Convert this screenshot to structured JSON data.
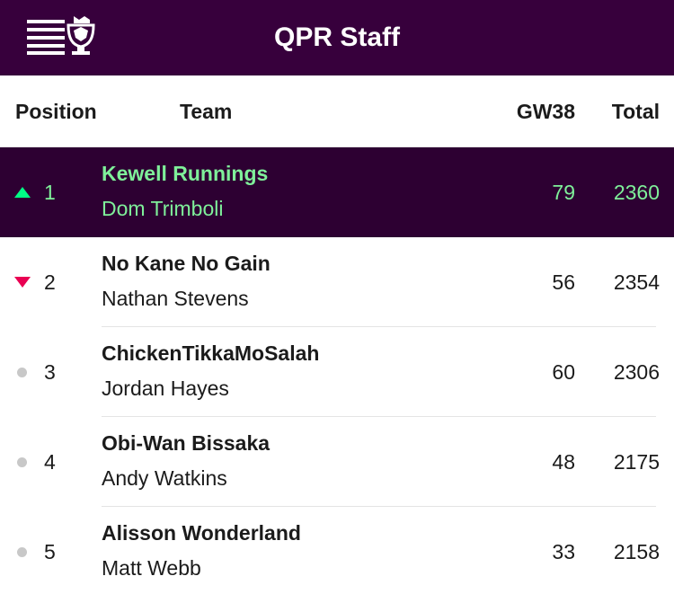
{
  "header": {
    "title": "QPR Staff",
    "logo_icon": "premier-league-lion-crown-icon",
    "background": "#37003c"
  },
  "columns": {
    "position": "Position",
    "team": "Team",
    "gameweek": "GW38",
    "total": "Total"
  },
  "colors": {
    "active_row": "#2d0032",
    "active_text": "#7ff09a",
    "up": "#00ff85",
    "down": "#e90052",
    "same": "#c8c8c8"
  },
  "standings": [
    {
      "rank": "1",
      "movement": "up",
      "team": "Kewell Runnings",
      "manager": "Dom Trimboli",
      "gw": "79",
      "total": "2360",
      "highlight": true
    },
    {
      "rank": "2",
      "movement": "down",
      "team": "No Kane No Gain",
      "manager": "Nathan Stevens",
      "gw": "56",
      "total": "2354",
      "highlight": false
    },
    {
      "rank": "3",
      "movement": "same",
      "team": "ChickenTikkaMoSalah",
      "manager": "Jordan Hayes",
      "gw": "60",
      "total": "2306",
      "highlight": false
    },
    {
      "rank": "4",
      "movement": "same",
      "team": "Obi-Wan Bissaka",
      "manager": "Andy Watkins",
      "gw": "48",
      "total": "2175",
      "highlight": false
    },
    {
      "rank": "5",
      "movement": "same",
      "team": "Alisson Wonderland",
      "manager": "Matt Webb",
      "gw": "33",
      "total": "2158",
      "highlight": false
    }
  ]
}
